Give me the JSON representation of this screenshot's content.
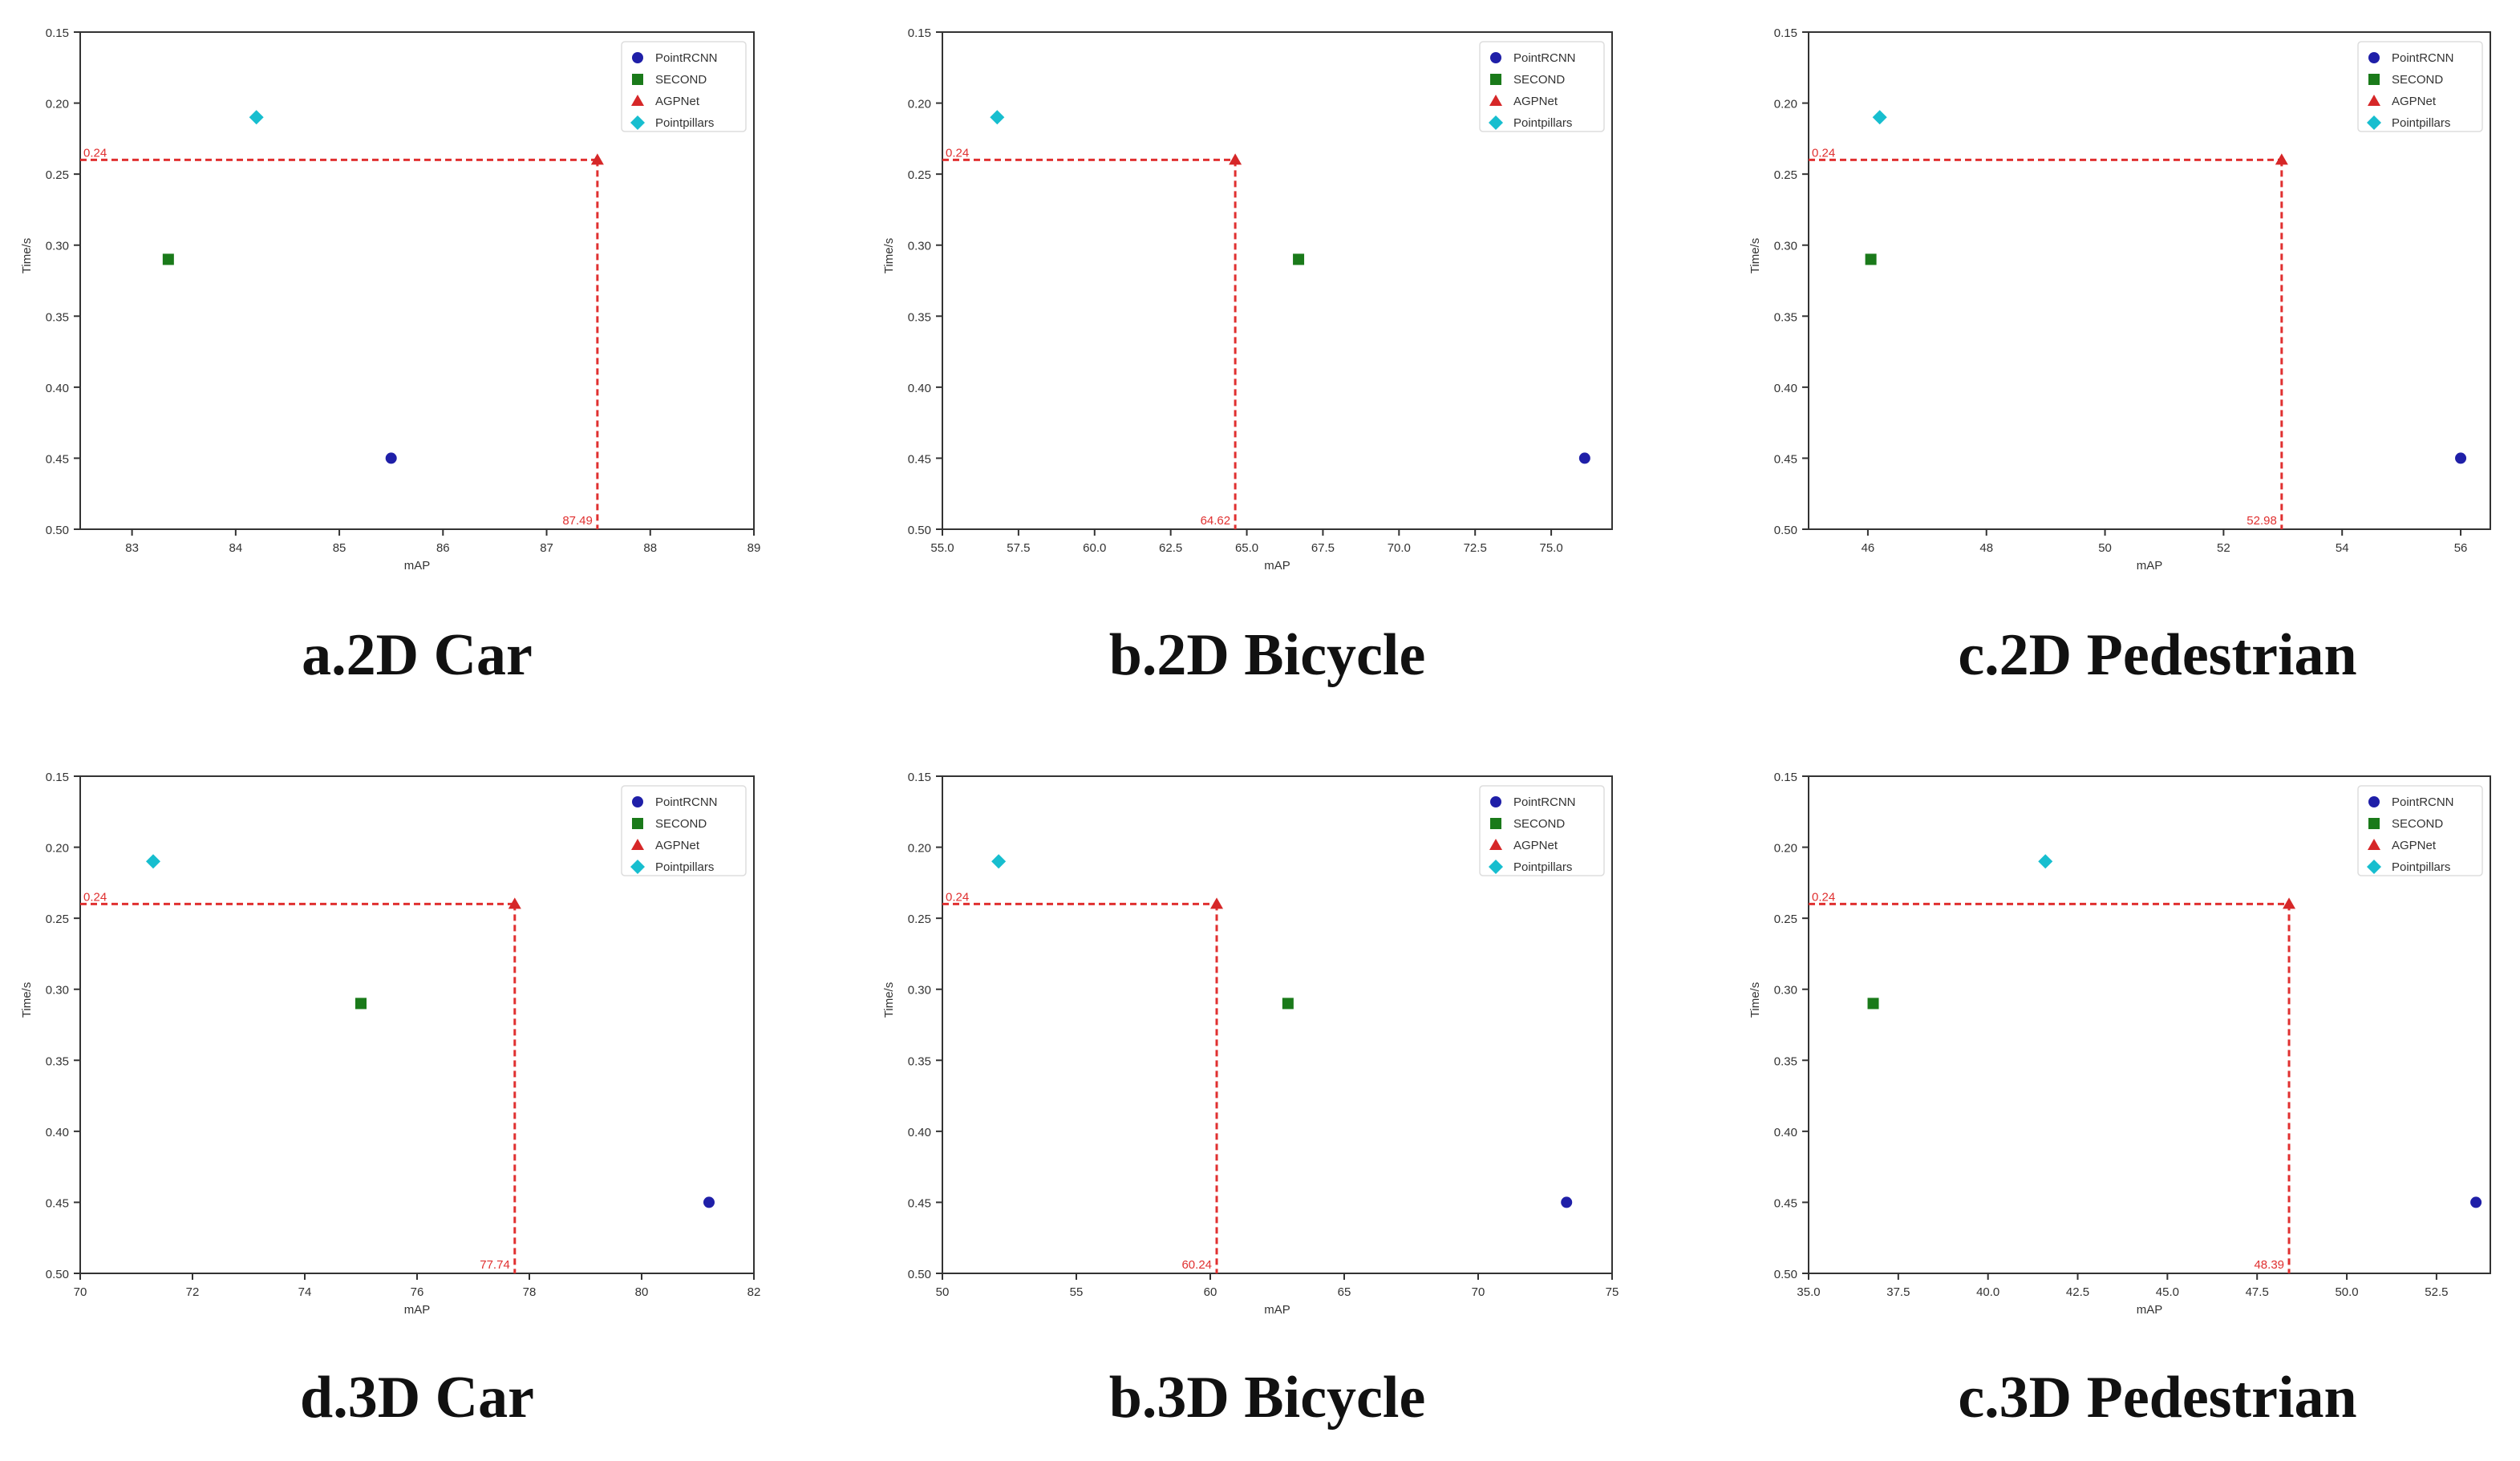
{
  "legend_labels": [
    "PointRCNN",
    "SECOND",
    "AGPNet",
    "Pointpillars"
  ],
  "series_colors": {
    "PointRCNN": "#1f1fa8",
    "SECOND": "#1a7a1a",
    "AGPNet": "#d62728",
    "Pointpillars": "#17becf"
  },
  "guide_color": "#e03030",
  "captions": [
    "a.2D Car",
    "b.2D Bicycle",
    "c.2D Pedestrian",
    "d.3D Car",
    "b.3D Bicycle",
    "c.3D Pedestrian"
  ],
  "chart_data": [
    {
      "type": "scatter",
      "xlabel": "mAP",
      "ylabel": "Time/s",
      "xlim": [
        82.5,
        89
      ],
      "ylim": [
        0.15,
        0.5
      ],
      "y_inverted": true,
      "xticks": [
        "83",
        "84",
        "85",
        "86",
        "87",
        "88",
        "89"
      ],
      "yticks": [
        "0.15",
        "0.20",
        "0.25",
        "0.30",
        "0.35",
        "0.40",
        "0.45",
        "0.50"
      ],
      "legend_position": "top-right",
      "series": [
        {
          "name": "PointRCNN",
          "x": [
            85.5
          ],
          "y": [
            0.45
          ]
        },
        {
          "name": "SECOND",
          "x": [
            83.35
          ],
          "y": [
            0.31
          ]
        },
        {
          "name": "AGPNet",
          "x": [
            87.49
          ],
          "y": [
            0.24
          ]
        },
        {
          "name": "Pointpillars",
          "x": [
            84.2
          ],
          "y": [
            0.21
          ]
        }
      ],
      "annotations": [
        "0.24",
        "87.49"
      ]
    },
    {
      "type": "scatter",
      "xlabel": "mAP",
      "ylabel": "Time/s",
      "xlim": [
        55,
        77
      ],
      "ylim": [
        0.15,
        0.5
      ],
      "y_inverted": true,
      "xticks": [
        "55.0",
        "57.5",
        "60.0",
        "62.5",
        "65.0",
        "67.5",
        "70.0",
        "72.5",
        "75.0"
      ],
      "yticks": [
        "0.15",
        "0.20",
        "0.25",
        "0.30",
        "0.35",
        "0.40",
        "0.45",
        "0.50"
      ],
      "legend_position": "top-right",
      "series": [
        {
          "name": "PointRCNN",
          "x": [
            76.1
          ],
          "y": [
            0.45
          ]
        },
        {
          "name": "SECOND",
          "x": [
            66.7
          ],
          "y": [
            0.31
          ]
        },
        {
          "name": "AGPNet",
          "x": [
            64.62
          ],
          "y": [
            0.24
          ]
        },
        {
          "name": "Pointpillars",
          "x": [
            56.8
          ],
          "y": [
            0.21
          ]
        }
      ],
      "annotations": [
        "0.24",
        "64.62"
      ]
    },
    {
      "type": "scatter",
      "xlabel": "mAP",
      "ylabel": "Time/s",
      "xlim": [
        45,
        56.5
      ],
      "ylim": [
        0.15,
        0.5
      ],
      "y_inverted": true,
      "xticks": [
        "46",
        "48",
        "50",
        "52",
        "54",
        "56"
      ],
      "yticks": [
        "0.15",
        "0.20",
        "0.25",
        "0.30",
        "0.35",
        "0.40",
        "0.45",
        "0.50"
      ],
      "legend_position": "top-right",
      "series": [
        {
          "name": "PointRCNN",
          "x": [
            56.0
          ],
          "y": [
            0.45
          ]
        },
        {
          "name": "SECOND",
          "x": [
            46.05
          ],
          "y": [
            0.31
          ]
        },
        {
          "name": "AGPNet",
          "x": [
            52.98
          ],
          "y": [
            0.24
          ]
        },
        {
          "name": "Pointpillars",
          "x": [
            46.2
          ],
          "y": [
            0.21
          ]
        }
      ],
      "annotations": [
        "0.24",
        "52.98"
      ]
    },
    {
      "type": "scatter",
      "xlabel": "mAP",
      "ylabel": "Time/s",
      "xlim": [
        70,
        82
      ],
      "ylim": [
        0.15,
        0.5
      ],
      "y_inverted": true,
      "xticks": [
        "70",
        "72",
        "74",
        "76",
        "78",
        "80",
        "82"
      ],
      "yticks": [
        "0.15",
        "0.20",
        "0.25",
        "0.30",
        "0.35",
        "0.40",
        "0.45",
        "0.50"
      ],
      "legend_position": "top-right",
      "series": [
        {
          "name": "PointRCNN",
          "x": [
            81.2
          ],
          "y": [
            0.45
          ]
        },
        {
          "name": "SECOND",
          "x": [
            75.0
          ],
          "y": [
            0.31
          ]
        },
        {
          "name": "AGPNet",
          "x": [
            77.74
          ],
          "y": [
            0.24
          ]
        },
        {
          "name": "Pointpillars",
          "x": [
            71.3
          ],
          "y": [
            0.21
          ]
        }
      ],
      "annotations": [
        "0.24",
        "77.74"
      ]
    },
    {
      "type": "scatter",
      "xlabel": "mAP",
      "ylabel": "Time/s",
      "xlim": [
        50,
        75
      ],
      "ylim": [
        0.15,
        0.5
      ],
      "y_inverted": true,
      "xticks": [
        "50",
        "55",
        "60",
        "65",
        "70",
        "75"
      ],
      "yticks": [
        "0.15",
        "0.20",
        "0.25",
        "0.30",
        "0.35",
        "0.40",
        "0.45",
        "0.50"
      ],
      "legend_position": "top-right",
      "series": [
        {
          "name": "PointRCNN",
          "x": [
            73.3
          ],
          "y": [
            0.45
          ]
        },
        {
          "name": "SECOND",
          "x": [
            62.9
          ],
          "y": [
            0.31
          ]
        },
        {
          "name": "AGPNet",
          "x": [
            60.24
          ],
          "y": [
            0.24
          ]
        },
        {
          "name": "Pointpillars",
          "x": [
            52.1
          ],
          "y": [
            0.21
          ]
        }
      ],
      "annotations": [
        "0.24",
        "60.24"
      ]
    },
    {
      "type": "scatter",
      "xlabel": "mAP",
      "ylabel": "Time/s",
      "xlim": [
        35,
        54
      ],
      "ylim": [
        0.15,
        0.5
      ],
      "y_inverted": true,
      "xticks": [
        "35.0",
        "37.5",
        "40.0",
        "42.5",
        "45.0",
        "47.5",
        "50.0",
        "52.5"
      ],
      "yticks": [
        "0.15",
        "0.20",
        "0.25",
        "0.30",
        "0.35",
        "0.40",
        "0.45",
        "0.50"
      ],
      "legend_position": "top-right",
      "series": [
        {
          "name": "PointRCNN",
          "x": [
            53.6
          ],
          "y": [
            0.45
          ]
        },
        {
          "name": "SECOND",
          "x": [
            36.8
          ],
          "y": [
            0.31
          ]
        },
        {
          "name": "AGPNet",
          "x": [
            48.39
          ],
          "y": [
            0.24
          ]
        },
        {
          "name": "Pointpillars",
          "x": [
            41.6
          ],
          "y": [
            0.21
          ]
        }
      ],
      "annotations": [
        "0.24",
        "48.39"
      ]
    }
  ]
}
